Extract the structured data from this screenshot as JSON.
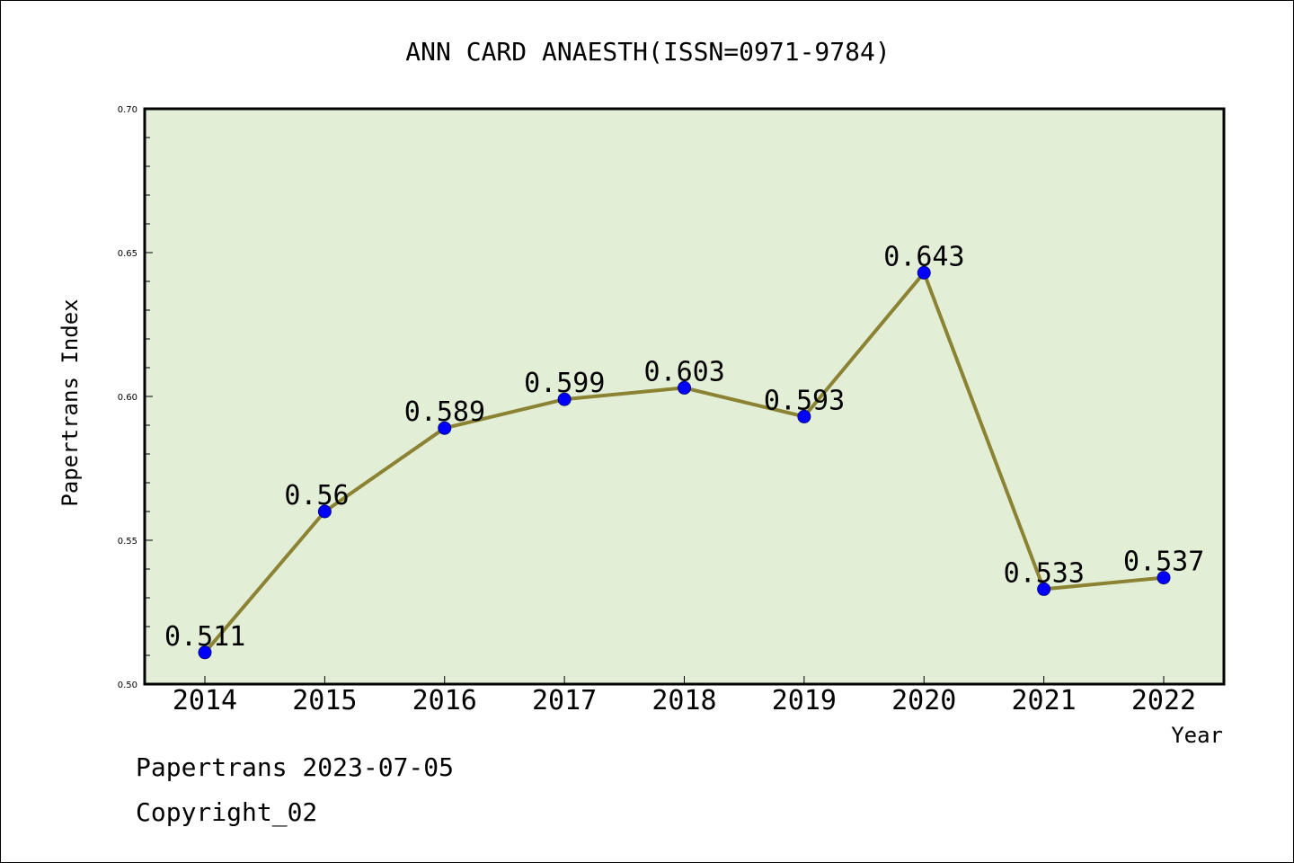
{
  "chart_data": {
    "type": "line",
    "title": "ANN CARD ANAESTH(ISSN=0971-9784)",
    "xlabel": "Year",
    "ylabel": "Papertrans Index",
    "categories": [
      "2014",
      "2015",
      "2016",
      "2017",
      "2018",
      "2019",
      "2020",
      "2021",
      "2022"
    ],
    "series": [
      {
        "values": [
          0.511,
          0.56,
          0.589,
          0.599,
          0.603,
          0.593,
          0.643,
          0.533,
          0.537
        ],
        "labels": [
          "0.511",
          "0.56",
          "0.589",
          "0.599",
          "0.603",
          "0.593",
          "0.643",
          "0.533",
          "0.537"
        ]
      }
    ],
    "ylim": [
      0.5,
      0.7
    ],
    "yticks": [
      "0.50",
      "0.55",
      "0.60",
      "0.65",
      "0.70"
    ],
    "grid": false,
    "colors": {
      "plot_background": "#e2efd6",
      "line": "#8b8333",
      "marker": "#0000ff"
    }
  },
  "footer": {
    "line1": "Papertrans 2023-07-05",
    "line2": "Copyright_02"
  }
}
